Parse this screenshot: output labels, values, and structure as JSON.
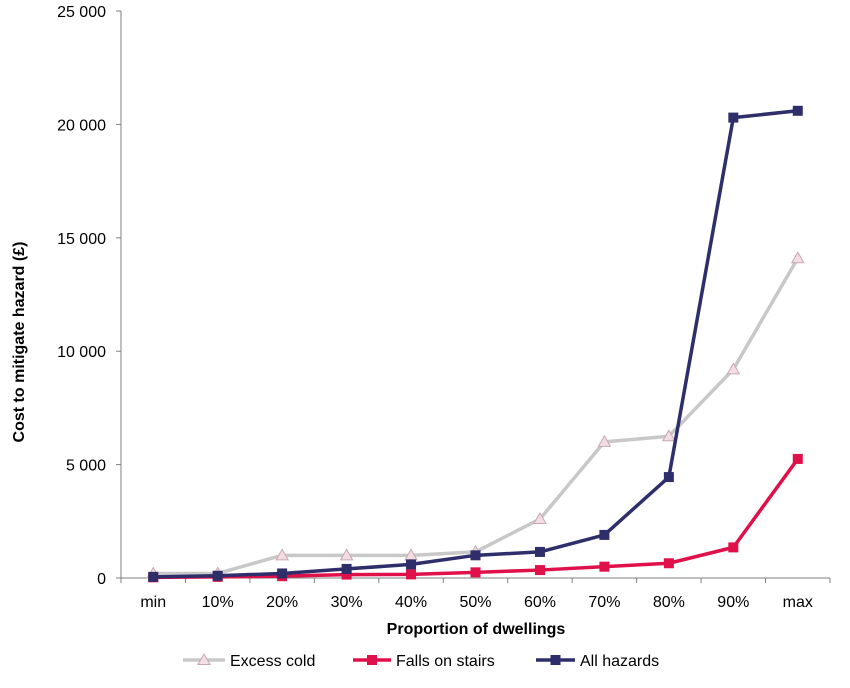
{
  "chart_data": {
    "type": "line",
    "title": "",
    "xlabel": "Proportion of dwellings",
    "ylabel": "Cost to mitigate hazard (£)",
    "categories": [
      "min",
      "10%",
      "20%",
      "30%",
      "40%",
      "50%",
      "60%",
      "70%",
      "80%",
      "90%",
      "max"
    ],
    "ylim": [
      0,
      25000
    ],
    "yticks": [
      0,
      5000,
      10000,
      15000,
      20000,
      25000
    ],
    "ytick_labels": [
      "0",
      "5 000",
      "10 000",
      "15 000",
      "20 000",
      "25 000"
    ],
    "grid": false,
    "legend_position": "bottom",
    "series": [
      {
        "name": "Excess cold",
        "color": "#c8c8c8",
        "marker": "triangle",
        "values": [
          200,
          200,
          1000,
          1000,
          1000,
          1150,
          2600,
          6000,
          6250,
          9200,
          14100
        ]
      },
      {
        "name": "Falls on stairs",
        "color": "#e0104a",
        "marker": "square",
        "values": [
          30,
          50,
          80,
          150,
          160,
          250,
          350,
          500,
          650,
          1350,
          5250
        ]
      },
      {
        "name": "All hazards",
        "color": "#2e2e6a",
        "marker": "square",
        "values": [
          50,
          100,
          200,
          400,
          600,
          1000,
          1150,
          1900,
          4450,
          20300,
          20600
        ]
      }
    ]
  }
}
